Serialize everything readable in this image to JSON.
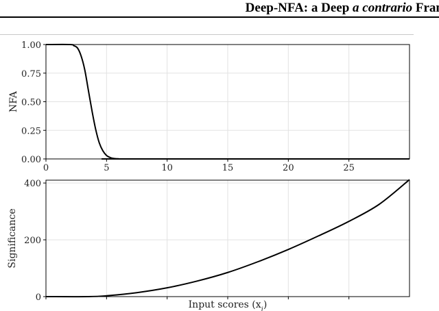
{
  "header": {
    "title_part1": "Deep-NFA: a Deep ",
    "title_italic": "a contrario",
    "title_part2": " Fran"
  },
  "chart_data": [
    {
      "type": "line",
      "title": "",
      "xlabel": "",
      "ylabel": "NFA",
      "xlim": [
        0,
        30
      ],
      "ylim": [
        0,
        1
      ],
      "xticks": [
        0,
        5,
        10,
        15,
        20,
        25
      ],
      "xtick_labels": [
        "0",
        "5",
        "10",
        "15",
        "20",
        "25"
      ],
      "yticks": [
        0,
        0.25,
        0.5,
        0.75,
        1.0
      ],
      "ytick_labels": [
        "0.00",
        "0.25",
        "0.50",
        "0.75",
        "1.00"
      ],
      "grid": true,
      "series": [
        {
          "color": "#000000",
          "x": [
            0,
            2.0,
            2.3,
            2.6,
            2.9,
            3.2,
            3.5,
            3.8,
            4.1,
            4.4,
            4.7,
            5.0,
            5.3,
            5.6,
            6.0,
            6.5,
            30
          ],
          "y": [
            1.0,
            1.0,
            0.99,
            0.97,
            0.9,
            0.78,
            0.6,
            0.42,
            0.26,
            0.14,
            0.07,
            0.03,
            0.012,
            0.004,
            0.001,
            0.0,
            0.0
          ]
        }
      ]
    },
    {
      "type": "line",
      "title": "",
      "xlabel": "Input scores (x",
      "xlabel_subscript": "i",
      "xlabel_suffix": ")",
      "ylabel": "Significance",
      "xlim": [
        0,
        30
      ],
      "ylim": [
        0,
        410
      ],
      "yticks": [
        0,
        200,
        400
      ],
      "ytick_labels": [
        "0",
        "200",
        "400"
      ],
      "grid": true,
      "series": [
        {
          "color": "#000000",
          "x": [
            0,
            3.5,
            5,
            7.5,
            10,
            12.5,
            15,
            17.5,
            20,
            22.5,
            25,
            27.5,
            30
          ],
          "y": [
            0,
            0,
            3,
            14,
            31,
            55,
            85,
            123,
            166,
            214,
            265,
            325,
            412
          ]
        }
      ]
    }
  ]
}
